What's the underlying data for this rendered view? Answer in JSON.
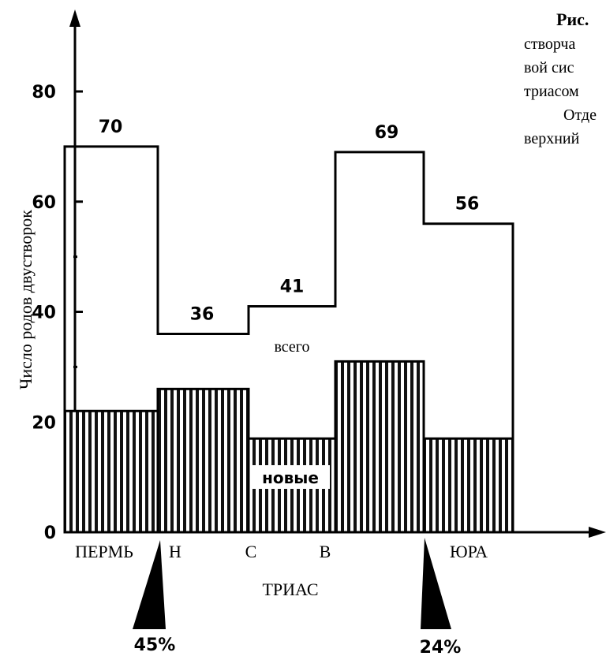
{
  "chart_data": {
    "type": "bar",
    "ylabel": "Число родов двустворок",
    "ylim": [
      0,
      90
    ],
    "yticks": [
      0,
      20,
      40,
      60,
      80
    ],
    "categories": [
      "ПЕРМЬ",
      "Н",
      "С",
      "В",
      "",
      "ЮРА"
    ],
    "period_label": "ТРИАС",
    "series": [
      {
        "name": "всего",
        "values": [
          70,
          36,
          36,
          41,
          69,
          56
        ],
        "labels": [
          "70",
          "36",
          "",
          "41",
          "69",
          "56"
        ]
      },
      {
        "name": "новые",
        "values": [
          22,
          26,
          17,
          17,
          31,
          17
        ]
      }
    ],
    "extinction_markers": [
      {
        "label": "45%",
        "position_between": [
          "ПЕРМЬ",
          "Н"
        ]
      },
      {
        "label": "24%",
        "position_between": [
          "",
          "ЮРА"
        ]
      }
    ]
  },
  "caption_fragments": [
    "Рис.",
    "створча",
    "вой сис",
    "триасом",
    "Отде",
    "верхний"
  ]
}
